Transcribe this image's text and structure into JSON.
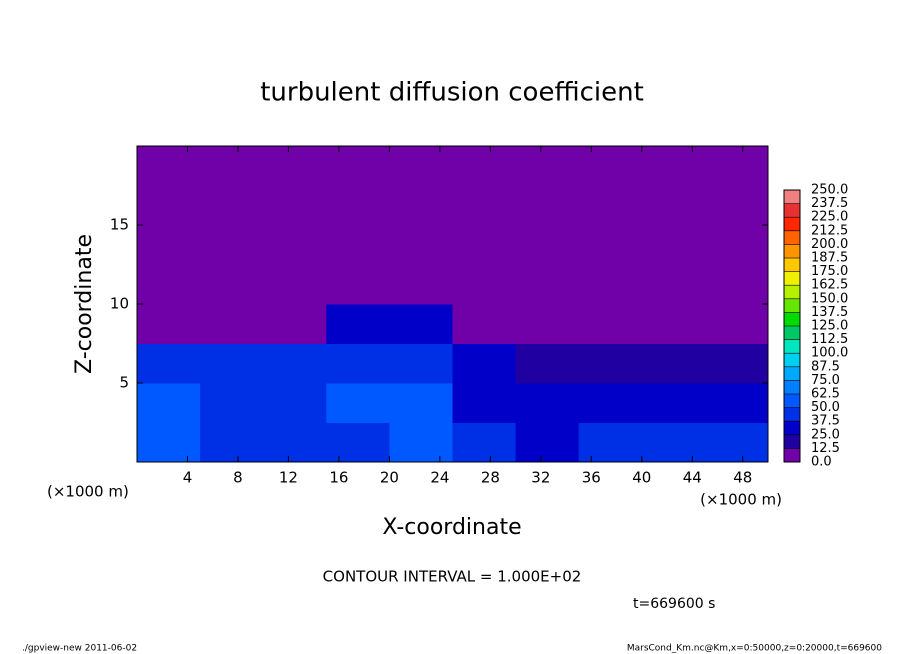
{
  "chart_data": {
    "type": "heatmap",
    "title": "turbulent diffusion coefficient",
    "xlabel": "X-coordinate",
    "ylabel": "Z-coordinate",
    "xunit": "(×1000 m)",
    "yunit": "(×1000 m)",
    "xlim": [
      0,
      50
    ],
    "ylim": [
      0,
      20
    ],
    "xticks": [
      4,
      8,
      12,
      16,
      20,
      24,
      28,
      32,
      36,
      40,
      44,
      48
    ],
    "yticks": [
      5,
      10,
      15
    ],
    "xbins": [
      0,
      5,
      10,
      15,
      20,
      25,
      30,
      35,
      40,
      45,
      50
    ],
    "zbins": [
      0,
      2.5,
      5,
      7.5,
      10,
      12.5,
      15,
      17.5,
      20
    ],
    "z": [
      [
        50,
        45,
        40,
        45,
        50,
        40,
        35,
        40,
        40,
        45
      ],
      [
        55,
        45,
        40,
        50,
        55,
        35,
        30,
        30,
        30,
        30
      ],
      [
        40,
        45,
        45,
        40,
        45,
        30,
        20,
        20,
        20,
        15
      ],
      [
        0,
        0,
        5,
        25,
        30,
        5,
        0,
        0,
        0,
        0
      ],
      [
        0,
        0,
        0,
        5,
        5,
        0,
        0,
        0,
        0,
        0
      ],
      [
        0,
        0,
        0,
        0,
        0,
        0,
        0,
        0,
        0,
        0
      ],
      [
        0,
        0,
        0,
        0,
        0,
        0,
        0,
        0,
        0,
        0
      ],
      [
        0,
        0,
        0,
        0,
        0,
        0,
        0,
        0,
        0,
        0
      ]
    ],
    "colorbar": {
      "ticks": [
        {
          "value": 0,
          "label": "0.0"
        },
        {
          "value": 12.5,
          "label": "12.5"
        },
        {
          "value": 25,
          "label": "25.0"
        },
        {
          "value": 37.5,
          "label": "37.5"
        },
        {
          "value": 50,
          "label": "50.0"
        },
        {
          "value": 62.5,
          "label": "62.5"
        },
        {
          "value": 75,
          "label": "75.0"
        },
        {
          "value": 87.5,
          "label": "87.5"
        },
        {
          "value": 100,
          "label": "100.0"
        },
        {
          "value": 112.5,
          "label": "112.5"
        },
        {
          "value": 125,
          "label": "125.0"
        },
        {
          "value": 137.5,
          "label": "137.5"
        },
        {
          "value": 150,
          "label": "150.0"
        },
        {
          "value": 162.5,
          "label": "162.5"
        },
        {
          "value": 175,
          "label": "175.0"
        },
        {
          "value": 187.5,
          "label": "187.5"
        },
        {
          "value": 200,
          "label": "200.0"
        },
        {
          "value": 212.5,
          "label": "212.5"
        },
        {
          "value": 225,
          "label": "225.0"
        },
        {
          "value": 237.5,
          "label": "237.5"
        },
        {
          "value": 250,
          "label": "250.0"
        }
      ],
      "colors": [
        "#7000a8",
        "#2000a0",
        "#0000c8",
        "#0030e6",
        "#0058ff",
        "#0080ff",
        "#00a8ff",
        "#00d0f0",
        "#00e6c0",
        "#00c864",
        "#00dc00",
        "#64e600",
        "#b4f000",
        "#f0f000",
        "#ffc800",
        "#ff9600",
        "#ff6400",
        "#ff2800",
        "#e63232",
        "#f08080"
      ]
    },
    "annotation": "CONTOUR INTERVAL = 1.000E+02",
    "time_label": "t=669600 s",
    "footer_left": "./gpview-new   2011-06-02",
    "footer_right": "MarsCond_Km.nc@Km,x=0:50000,z=0:20000,t=669600"
  }
}
